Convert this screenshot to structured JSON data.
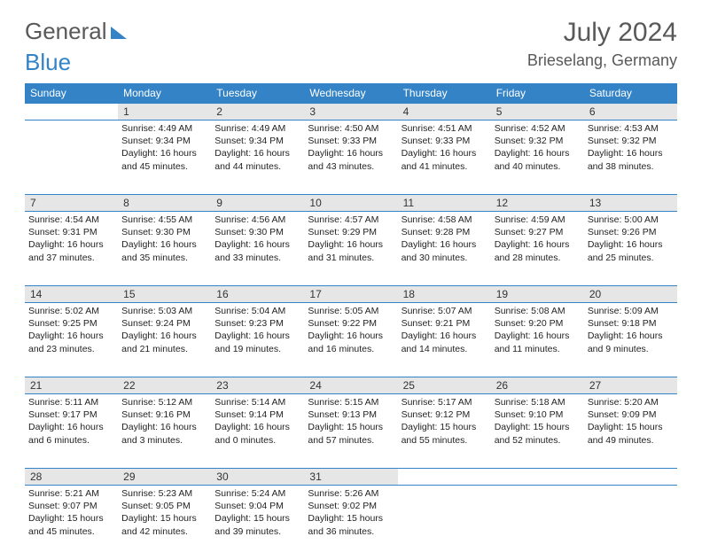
{
  "logo": {
    "word1": "General",
    "word2": "Blue"
  },
  "header": {
    "month_title": "July 2024",
    "location": "Brieselang, Germany"
  },
  "calendar": {
    "columns": [
      "Sunday",
      "Monday",
      "Tuesday",
      "Wednesday",
      "Thursday",
      "Friday",
      "Saturday"
    ],
    "header_bg": "#3383c6",
    "header_fg": "#ffffff",
    "daynum_bg": "#e6e6e6",
    "border_color": "#3383c6",
    "text_color": "#232323",
    "font_size_body": 10.5,
    "font_size_header": 12,
    "weeks": [
      [
        null,
        {
          "n": "1",
          "sunrise": "4:49 AM",
          "sunset": "9:34 PM",
          "dl": "16 hours and 45 minutes."
        },
        {
          "n": "2",
          "sunrise": "4:49 AM",
          "sunset": "9:34 PM",
          "dl": "16 hours and 44 minutes."
        },
        {
          "n": "3",
          "sunrise": "4:50 AM",
          "sunset": "9:33 PM",
          "dl": "16 hours and 43 minutes."
        },
        {
          "n": "4",
          "sunrise": "4:51 AM",
          "sunset": "9:33 PM",
          "dl": "16 hours and 41 minutes."
        },
        {
          "n": "5",
          "sunrise": "4:52 AM",
          "sunset": "9:32 PM",
          "dl": "16 hours and 40 minutes."
        },
        {
          "n": "6",
          "sunrise": "4:53 AM",
          "sunset": "9:32 PM",
          "dl": "16 hours and 38 minutes."
        }
      ],
      [
        {
          "n": "7",
          "sunrise": "4:54 AM",
          "sunset": "9:31 PM",
          "dl": "16 hours and 37 minutes."
        },
        {
          "n": "8",
          "sunrise": "4:55 AM",
          "sunset": "9:30 PM",
          "dl": "16 hours and 35 minutes."
        },
        {
          "n": "9",
          "sunrise": "4:56 AM",
          "sunset": "9:30 PM",
          "dl": "16 hours and 33 minutes."
        },
        {
          "n": "10",
          "sunrise": "4:57 AM",
          "sunset": "9:29 PM",
          "dl": "16 hours and 31 minutes."
        },
        {
          "n": "11",
          "sunrise": "4:58 AM",
          "sunset": "9:28 PM",
          "dl": "16 hours and 30 minutes."
        },
        {
          "n": "12",
          "sunrise": "4:59 AM",
          "sunset": "9:27 PM",
          "dl": "16 hours and 28 minutes."
        },
        {
          "n": "13",
          "sunrise": "5:00 AM",
          "sunset": "9:26 PM",
          "dl": "16 hours and 25 minutes."
        }
      ],
      [
        {
          "n": "14",
          "sunrise": "5:02 AM",
          "sunset": "9:25 PM",
          "dl": "16 hours and 23 minutes."
        },
        {
          "n": "15",
          "sunrise": "5:03 AM",
          "sunset": "9:24 PM",
          "dl": "16 hours and 21 minutes."
        },
        {
          "n": "16",
          "sunrise": "5:04 AM",
          "sunset": "9:23 PM",
          "dl": "16 hours and 19 minutes."
        },
        {
          "n": "17",
          "sunrise": "5:05 AM",
          "sunset": "9:22 PM",
          "dl": "16 hours and 16 minutes."
        },
        {
          "n": "18",
          "sunrise": "5:07 AM",
          "sunset": "9:21 PM",
          "dl": "16 hours and 14 minutes."
        },
        {
          "n": "19",
          "sunrise": "5:08 AM",
          "sunset": "9:20 PM",
          "dl": "16 hours and 11 minutes."
        },
        {
          "n": "20",
          "sunrise": "5:09 AM",
          "sunset": "9:18 PM",
          "dl": "16 hours and 9 minutes."
        }
      ],
      [
        {
          "n": "21",
          "sunrise": "5:11 AM",
          "sunset": "9:17 PM",
          "dl": "16 hours and 6 minutes."
        },
        {
          "n": "22",
          "sunrise": "5:12 AM",
          "sunset": "9:16 PM",
          "dl": "16 hours and 3 minutes."
        },
        {
          "n": "23",
          "sunrise": "5:14 AM",
          "sunset": "9:14 PM",
          "dl": "16 hours and 0 minutes."
        },
        {
          "n": "24",
          "sunrise": "5:15 AM",
          "sunset": "9:13 PM",
          "dl": "15 hours and 57 minutes."
        },
        {
          "n": "25",
          "sunrise": "5:17 AM",
          "sunset": "9:12 PM",
          "dl": "15 hours and 55 minutes."
        },
        {
          "n": "26",
          "sunrise": "5:18 AM",
          "sunset": "9:10 PM",
          "dl": "15 hours and 52 minutes."
        },
        {
          "n": "27",
          "sunrise": "5:20 AM",
          "sunset": "9:09 PM",
          "dl": "15 hours and 49 minutes."
        }
      ],
      [
        {
          "n": "28",
          "sunrise": "5:21 AM",
          "sunset": "9:07 PM",
          "dl": "15 hours and 45 minutes."
        },
        {
          "n": "29",
          "sunrise": "5:23 AM",
          "sunset": "9:05 PM",
          "dl": "15 hours and 42 minutes."
        },
        {
          "n": "30",
          "sunrise": "5:24 AM",
          "sunset": "9:04 PM",
          "dl": "15 hours and 39 minutes."
        },
        {
          "n": "31",
          "sunrise": "5:26 AM",
          "sunset": "9:02 PM",
          "dl": "15 hours and 36 minutes."
        },
        null,
        null,
        null
      ]
    ],
    "labels": {
      "sunrise": "Sunrise:",
      "sunset": "Sunset:",
      "daylight": "Daylight:"
    }
  }
}
